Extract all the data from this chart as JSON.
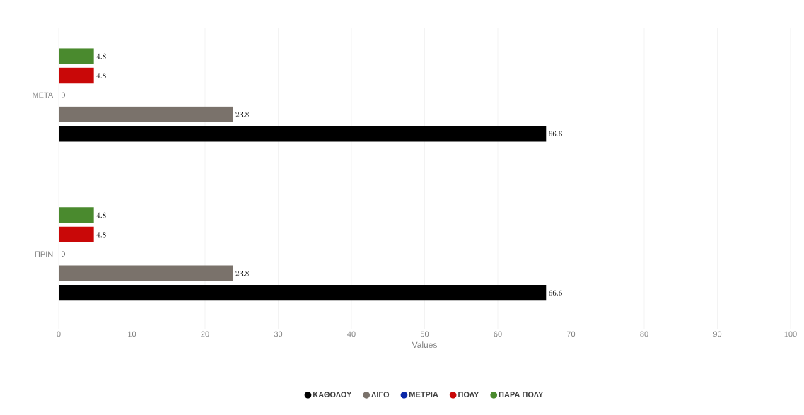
{
  "chart_data": {
    "type": "bar",
    "orientation": "horizontal",
    "xlabel": "Values",
    "categories": [
      "ΜΕΤΑ",
      "ΠΡΙΝ"
    ],
    "series": [
      {
        "name": "ΚΑΘΟΛΟΥ",
        "color": "#000000",
        "values": [
          66.6,
          66.6
        ]
      },
      {
        "name": "ΛΙΓΟ",
        "color": "#7a726b",
        "values": [
          23.8,
          23.8
        ]
      },
      {
        "name": "ΜΕΤΡΙΑ",
        "color": "#0b28a8",
        "values": [
          0,
          0
        ]
      },
      {
        "name": "ΠΟΛΥ",
        "color": "#c90808",
        "values": [
          4.8,
          4.8
        ]
      },
      {
        "name": "ΠΑΡΑ ΠΟΛΥ",
        "color": "#4a8a2e",
        "values": [
          4.8,
          4.8
        ]
      }
    ],
    "xlim": [
      0,
      100
    ],
    "xticks": [
      0,
      10,
      20,
      30,
      40,
      50,
      60,
      70,
      80,
      90,
      100
    ],
    "grid": "x",
    "legend": "bottom",
    "data_labels": true
  }
}
